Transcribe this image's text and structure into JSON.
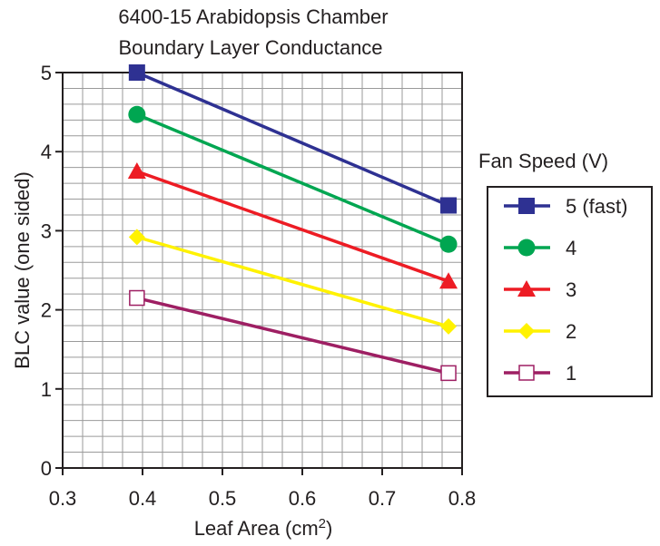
{
  "chart_data": {
    "type": "line",
    "title": [
      "6400-15 Arabidopsis Chamber",
      "Boundary Layer Conductance"
    ],
    "xlabel": "Leaf Area (cm",
    "xlabel_sup": "2",
    "xlabel_end": ")",
    "ylabel": "BLC value (one sided)",
    "xlim": [
      0.3,
      0.8
    ],
    "ylim": [
      0,
      5
    ],
    "grid": true,
    "x_ticks": [
      "0.3",
      "0.4",
      "0.5",
      "0.6",
      "0.7",
      "0.8"
    ],
    "y_ticks": [
      "0",
      "1",
      "2",
      "3",
      "4",
      "5"
    ],
    "legend_title": "Fan Speed (V)",
    "legend_position": "right",
    "series": [
      {
        "name": "5 (fast)",
        "x": [
          0.393,
          0.783
        ],
        "y": [
          5.0,
          3.32
        ],
        "color": "#2e3192",
        "marker": "square"
      },
      {
        "name": "4",
        "x": [
          0.393,
          0.783
        ],
        "y": [
          4.47,
          2.83
        ],
        "color": "#00a651",
        "marker": "circle"
      },
      {
        "name": "3",
        "x": [
          0.393,
          0.783
        ],
        "y": [
          3.75,
          2.36
        ],
        "color": "#ed1c24",
        "marker": "triangle"
      },
      {
        "name": "2",
        "x": [
          0.393,
          0.783
        ],
        "y": [
          2.92,
          1.79
        ],
        "color": "#fff200",
        "marker": "diamond"
      },
      {
        "name": "1",
        "x": [
          0.393,
          0.783
        ],
        "y": [
          2.15,
          1.2
        ],
        "color": "#9e1f63",
        "marker": "open-square"
      }
    ]
  }
}
